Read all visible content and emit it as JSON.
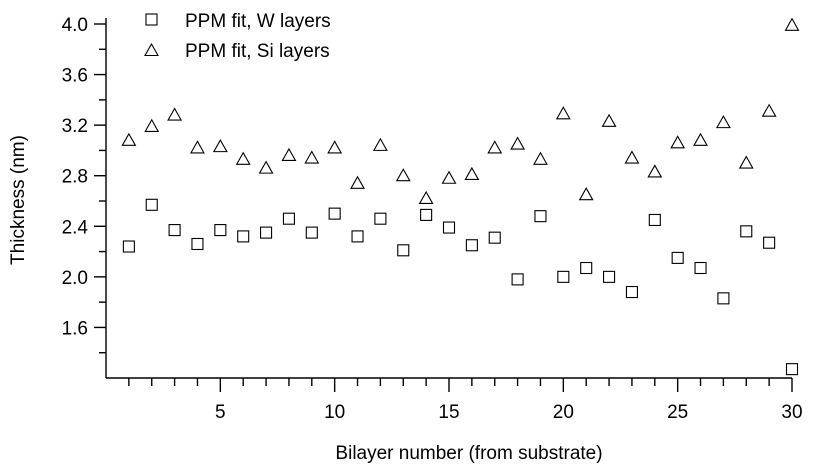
{
  "chart_data": {
    "type": "scatter",
    "xlabel": "Bilayer number (from substrate)",
    "ylabel": "Thickness (nm)",
    "xlim": [
      0,
      30
    ],
    "ylim": [
      1.2,
      4.0
    ],
    "x_ticks": [
      5,
      10,
      15,
      20,
      25,
      30
    ],
    "y_ticks": [
      1.6,
      2.0,
      2.4,
      2.8,
      3.2,
      3.6,
      4.0
    ],
    "y_tick_labels": [
      "1.6",
      "2.0",
      "2.4",
      "2.8",
      "3.2",
      "3.6",
      "4.0"
    ],
    "grid": false,
    "legend_position": "top-left",
    "series": [
      {
        "name": "PPM fit, W layers",
        "marker": "square",
        "x": [
          1,
          2,
          3,
          4,
          5,
          6,
          7,
          8,
          9,
          10,
          11,
          12,
          13,
          14,
          15,
          16,
          17,
          18,
          19,
          20,
          21,
          22,
          23,
          24,
          25,
          26,
          27,
          28,
          29,
          30
        ],
        "values": [
          2.24,
          2.57,
          2.37,
          2.26,
          2.37,
          2.32,
          2.35,
          2.46,
          2.35,
          2.5,
          2.32,
          2.46,
          2.21,
          2.49,
          2.39,
          2.25,
          2.31,
          1.98,
          2.48,
          2.0,
          2.07,
          2.0,
          1.88,
          2.45,
          2.15,
          2.07,
          1.83,
          2.36,
          2.27,
          1.27
        ]
      },
      {
        "name": "PPM fit, Si layers",
        "marker": "triangle",
        "x": [
          1,
          2,
          3,
          4,
          5,
          6,
          7,
          8,
          9,
          10,
          11,
          12,
          13,
          14,
          15,
          16,
          17,
          18,
          19,
          20,
          21,
          22,
          23,
          24,
          25,
          26,
          27,
          28,
          29,
          30
        ],
        "values": [
          3.08,
          3.19,
          3.28,
          3.02,
          3.03,
          2.93,
          2.86,
          2.96,
          2.94,
          3.02,
          2.74,
          3.04,
          2.8,
          2.62,
          2.78,
          2.81,
          3.02,
          3.05,
          2.93,
          3.29,
          2.65,
          3.23,
          2.94,
          2.83,
          3.06,
          3.08,
          3.22,
          2.9,
          3.31,
          3.99
        ]
      }
    ]
  }
}
